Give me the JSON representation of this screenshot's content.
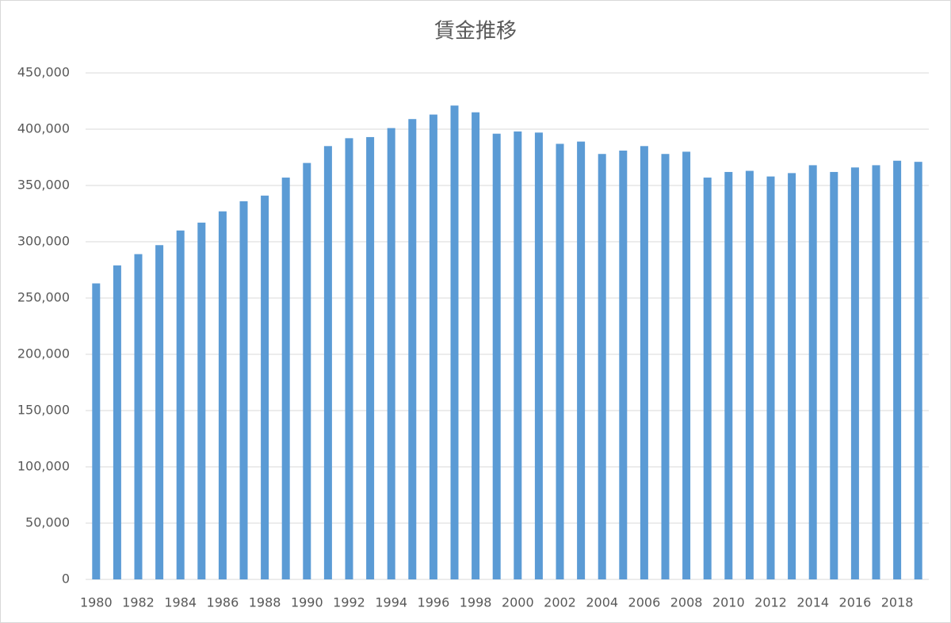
{
  "chart_data": {
    "type": "bar",
    "title": "賃金推移",
    "categories": [
      "1980",
      null,
      "1982",
      null,
      "1984",
      null,
      "1986",
      null,
      "1988",
      null,
      "1990",
      null,
      "1992",
      null,
      "1994",
      null,
      "1996",
      null,
      "1998",
      null,
      "2000",
      null,
      "2002",
      null,
      "2004",
      null,
      "2006",
      null,
      "2008",
      null,
      "2010",
      null,
      "2012",
      null,
      "2014",
      null,
      "2016",
      null,
      "2018",
      null
    ],
    "values": [
      263000,
      279000,
      289000,
      297000,
      310000,
      317000,
      327000,
      336000,
      341000,
      357000,
      370000,
      385000,
      392000,
      393000,
      401000,
      409000,
      413000,
      421000,
      415000,
      396000,
      398000,
      397000,
      387000,
      389000,
      378000,
      381000,
      385000,
      378000,
      380000,
      357000,
      362000,
      363000,
      358000,
      361000,
      368000,
      362000,
      366000,
      368000,
      372000,
      371000
    ],
    "color": "#5b9bd5",
    "ylim": [
      0,
      450000
    ],
    "yticks": [
      0,
      {
        "value": 50000,
        "label": "50,000"
      },
      {
        "value": 100000,
        "label": "100,000"
      },
      {
        "value": 150000,
        "label": "150,000"
      },
      {
        "value": 200000,
        "label": "200,000"
      },
      {
        "value": 250000,
        "label": "250,000"
      },
      {
        "value": 300000,
        "label": "300,000"
      },
      {
        "value": 350000,
        "label": "350,000"
      },
      {
        "value": 400000,
        "label": "400,000"
      },
      {
        "value": 450000,
        "label": "450,000"
      }
    ],
    "grid": true
  }
}
